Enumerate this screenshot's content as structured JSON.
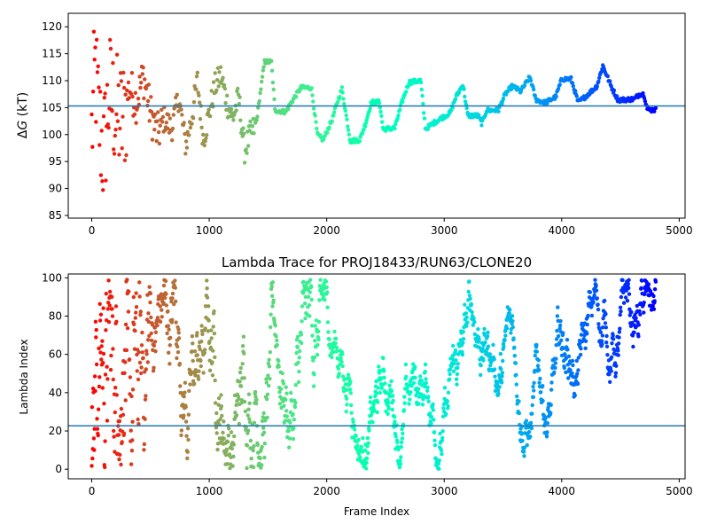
{
  "chart_data": [
    {
      "type": "scatter",
      "title": "",
      "xlabel": "",
      "ylabel": "ΔG (kT)",
      "ylabel_math": {
        "delta": "Δ",
        "var": "G",
        "unit": " (kT)"
      },
      "xlim": [
        -200,
        5050
      ],
      "ylim": [
        84.5,
        122.5
      ],
      "xticks": [
        0,
        1000,
        2000,
        3000,
        4000,
        5000
      ],
      "yticks": [
        85,
        90,
        95,
        100,
        105,
        110,
        115,
        120
      ],
      "hline": 105.3,
      "colormap": "rainbow",
      "x_range": [
        0,
        4800
      ],
      "trace_profile": [
        [
          0,
          100
        ],
        [
          30,
          112
        ],
        [
          60,
          103
        ],
        [
          100,
          96
        ],
        [
          150,
          108
        ],
        [
          200,
          104
        ],
        [
          260,
          102
        ],
        [
          320,
          109
        ],
        [
          380,
          106
        ],
        [
          440,
          111
        ],
        [
          500,
          104
        ],
        [
          560,
          100
        ],
        [
          620,
          103
        ],
        [
          680,
          101
        ],
        [
          740,
          107
        ],
        [
          800,
          98
        ],
        [
          850,
          103
        ],
        [
          900,
          110
        ],
        [
          950,
          99
        ],
        [
          1000,
          104
        ],
        [
          1050,
          109
        ],
        [
          1100,
          111
        ],
        [
          1150,
          106
        ],
        [
          1200,
          103
        ],
        [
          1250,
          107
        ],
        [
          1300,
          97
        ],
        [
          1350,
          100
        ],
        [
          1400,
          102
        ],
        [
          1470,
          113.5
        ],
        [
          1530,
          113.5
        ],
        [
          1560,
          104.5
        ],
        [
          1650,
          104.2
        ],
        [
          1700,
          106
        ],
        [
          1780,
          108.7
        ],
        [
          1870,
          108.7
        ],
        [
          1920,
          100
        ],
        [
          1970,
          99
        ],
        [
          2050,
          103
        ],
        [
          2090,
          106
        ],
        [
          2130,
          108.5
        ],
        [
          2200,
          98.8
        ],
        [
          2280,
          99
        ],
        [
          2330,
          102
        ],
        [
          2380,
          106
        ],
        [
          2450,
          106
        ],
        [
          2480,
          101
        ],
        [
          2580,
          101.2
        ],
        [
          2640,
          106
        ],
        [
          2700,
          109.7
        ],
        [
          2800,
          110
        ],
        [
          2840,
          101
        ],
        [
          2900,
          102
        ],
        [
          2970,
          103
        ],
        [
          3050,
          104
        ],
        [
          3100,
          107
        ],
        [
          3160,
          109.3
        ],
        [
          3200,
          103.5
        ],
        [
          3290,
          103.5
        ],
        [
          3320,
          102
        ],
        [
          3360,
          104.5
        ],
        [
          3460,
          104.5
        ],
        [
          3520,
          107.5
        ],
        [
          3580,
          109
        ],
        [
          3650,
          108
        ],
        [
          3730,
          110.7
        ],
        [
          3780,
          106.5
        ],
        [
          3860,
          105.9
        ],
        [
          3950,
          107
        ],
        [
          4000,
          110.3
        ],
        [
          4080,
          110.3
        ],
        [
          4140,
          106
        ],
        [
          4200,
          107
        ],
        [
          4300,
          109
        ],
        [
          4350,
          112.8
        ],
        [
          4420,
          109
        ],
        [
          4480,
          106.4
        ],
        [
          4620,
          106.6
        ],
        [
          4660,
          107.5
        ],
        [
          4700,
          107.5
        ],
        [
          4730,
          104.6
        ],
        [
          4800,
          104.6
        ]
      ]
    },
    {
      "type": "scatter",
      "title": "Lambda Trace for PROJ18433/RUN63/CLONE20",
      "xlabel": "Frame Index",
      "ylabel": "Lambda Index",
      "xlim": [
        -200,
        5050
      ],
      "ylim": [
        -5,
        102
      ],
      "xticks": [
        0,
        1000,
        2000,
        3000,
        4000,
        5000
      ],
      "yticks": [
        0,
        20,
        40,
        60,
        80,
        100
      ],
      "hline": 22.7,
      "colormap": "rainbow",
      "x_range": [
        0,
        4800
      ],
      "y_range": [
        0,
        99
      ]
    }
  ]
}
